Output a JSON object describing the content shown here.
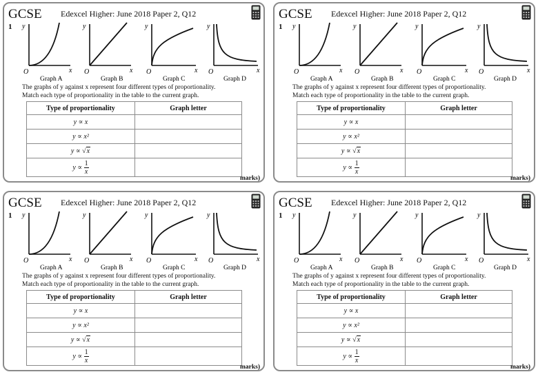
{
  "header": {
    "badge": "GCSE",
    "title": "Edexcel Higher: June 2018 Paper 2, Q12"
  },
  "question": {
    "number": "1",
    "description_line1": "The graphs of y against x represent four different types of proportionality.",
    "description_line2": "Match each type of proportionality in the table to the current graph."
  },
  "graphs": {
    "y_label": "y",
    "x_label": "x",
    "origin_label": "O",
    "items": [
      {
        "name": "Graph A",
        "shape": "y ∝ x²"
      },
      {
        "name": "Graph B",
        "shape": "y ∝ x"
      },
      {
        "name": "Graph C",
        "shape": "y ∝ √x"
      },
      {
        "name": "Graph D",
        "shape": "y ∝ 1/x"
      }
    ]
  },
  "table": {
    "headers": [
      "Type of proportionality",
      "Graph letter"
    ],
    "rows": [
      {
        "prefix": "y ∝ x",
        "answer": ""
      },
      {
        "prefix": "y ∝ x²",
        "answer": ""
      },
      {
        "prefix": "y ∝ ",
        "radicand": "x",
        "answer": ""
      },
      {
        "prefix": "y ∝ ",
        "num": "1",
        "den": "x",
        "answer": ""
      }
    ]
  },
  "footer": {
    "marks": "marks)"
  },
  "icons": {
    "calculator": "calculator-icon"
  },
  "colors": {
    "border": "#8a8a8a",
    "ink": "#111111"
  }
}
